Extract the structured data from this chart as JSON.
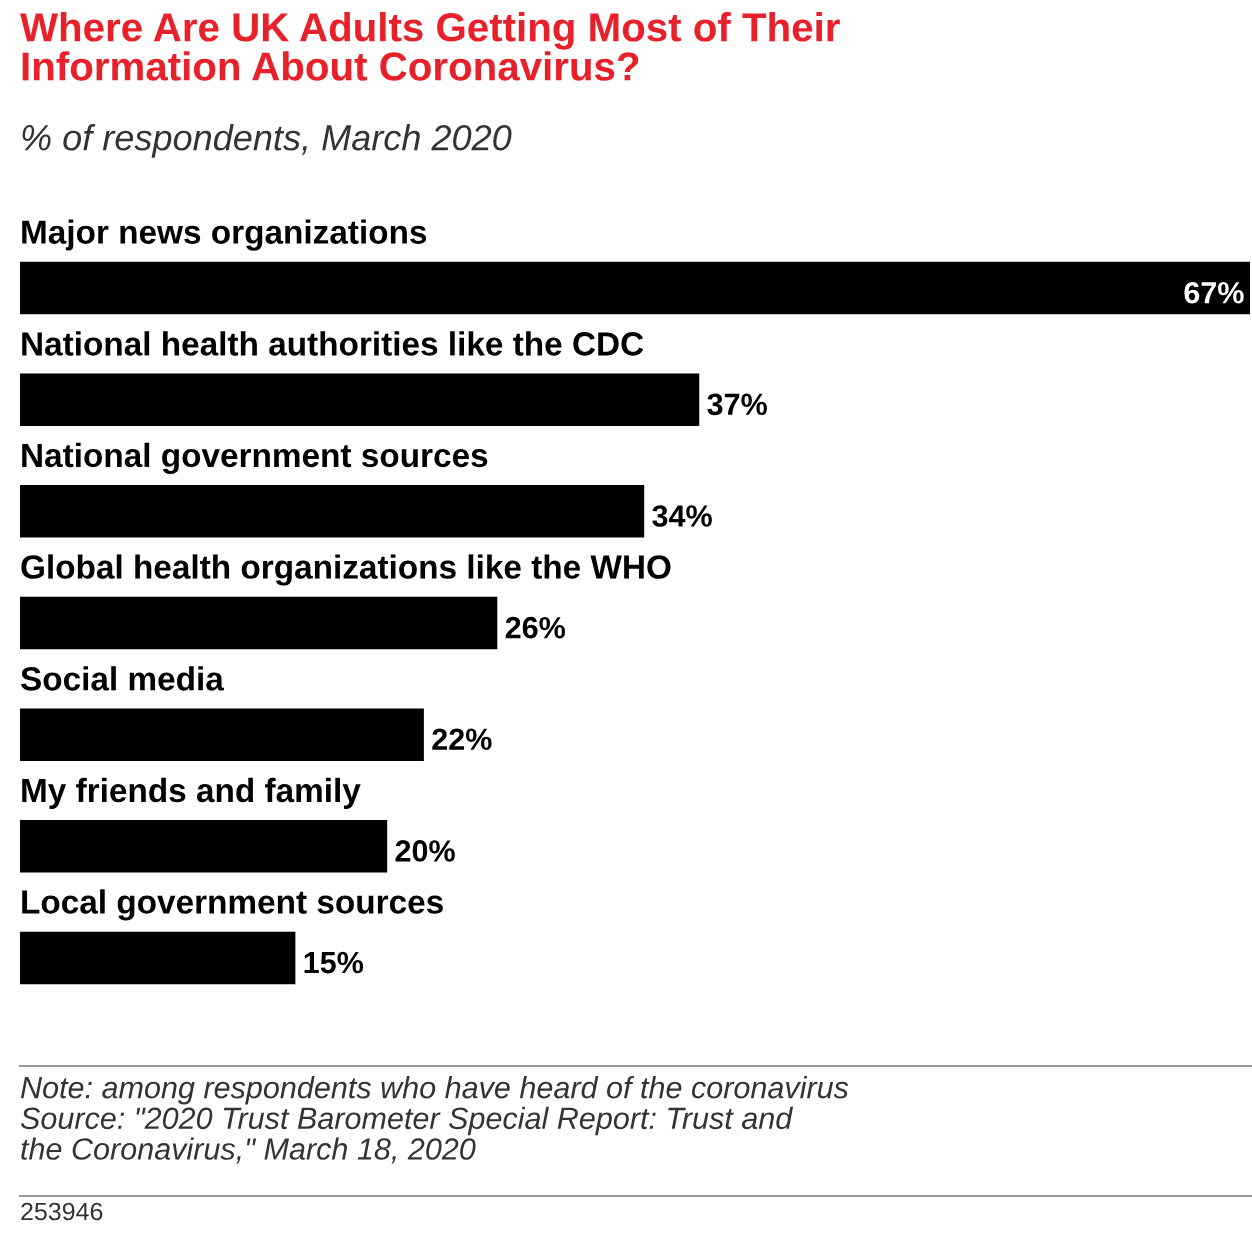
{
  "chart_data": {
    "type": "bar",
    "orientation": "horizontal",
    "title": "Where Are UK Adults Getting Most of Their\nInformation About Coronavirus?",
    "subtitle": "% of respondents, March 2020",
    "categories": [
      "Major news organizations",
      "National health authorities like the CDC",
      "National government sources",
      "Global health organizations like the WHO",
      "Social media",
      "My friends and family",
      "Local government sources"
    ],
    "values": [
      67,
      37,
      34,
      26,
      22,
      20,
      15
    ],
    "value_labels": [
      "67%",
      "37%",
      "34%",
      "26%",
      "22%",
      "20%",
      "15%"
    ],
    "color": "#000000",
    "annotations": [
      "Note: among respondents who have heard of the coronavirus\nSource: \"2020 Trust Barometer Special Report: Trust and\nthe Coronavirus,\" March 18, 2020",
      "253946"
    ]
  }
}
